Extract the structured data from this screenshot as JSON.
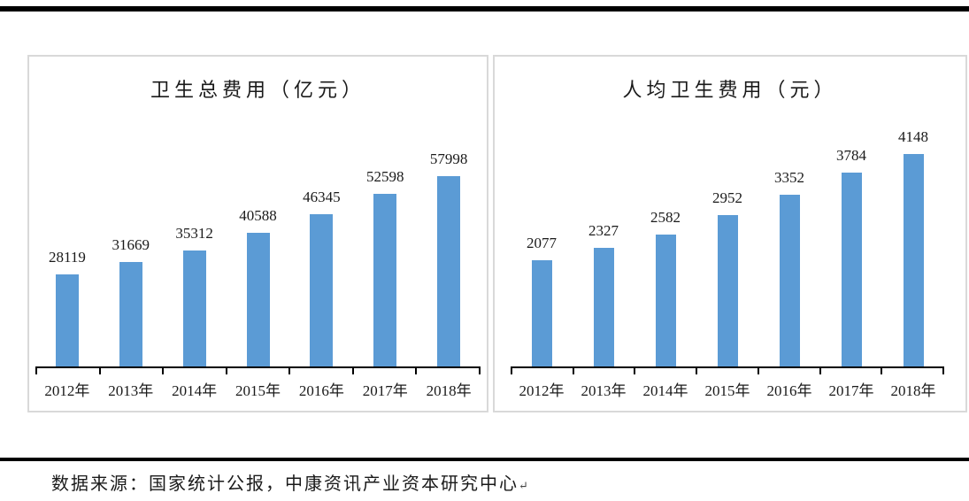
{
  "page": {
    "footer": {
      "source_text": "数据来源：国家统计公报，中康资讯产业资本研究中心",
      "paragraph_mark": "↵"
    }
  },
  "chart_data": [
    {
      "type": "bar",
      "title": "卫生总费用（亿元）",
      "categories": [
        "2012年",
        "2013年",
        "2014年",
        "2015年",
        "2016年",
        "2017年",
        "2018年"
      ],
      "values": [
        28119,
        31669,
        35312,
        40588,
        46345,
        52598,
        57998
      ],
      "xlabel": "",
      "ylabel": "",
      "ylim": [
        0,
        70000
      ],
      "bar_color": "#5B9BD5",
      "grid": false,
      "legend_position": "none",
      "data_labels_shown": true,
      "y_axis_shown": false
    },
    {
      "type": "bar",
      "title": "人均卫生费用（元）",
      "categories": [
        "2012年",
        "2013年",
        "2014年",
        "2015年",
        "2016年",
        "2017年",
        "2018年"
      ],
      "values": [
        2077,
        2327,
        2582,
        2952,
        3352,
        3784,
        4148
      ],
      "xlabel": "",
      "ylabel": "",
      "ylim": [
        0,
        4500
      ],
      "bar_color": "#5B9BD5",
      "grid": false,
      "legend_position": "none",
      "data_labels_shown": true,
      "y_axis_shown": false
    }
  ]
}
